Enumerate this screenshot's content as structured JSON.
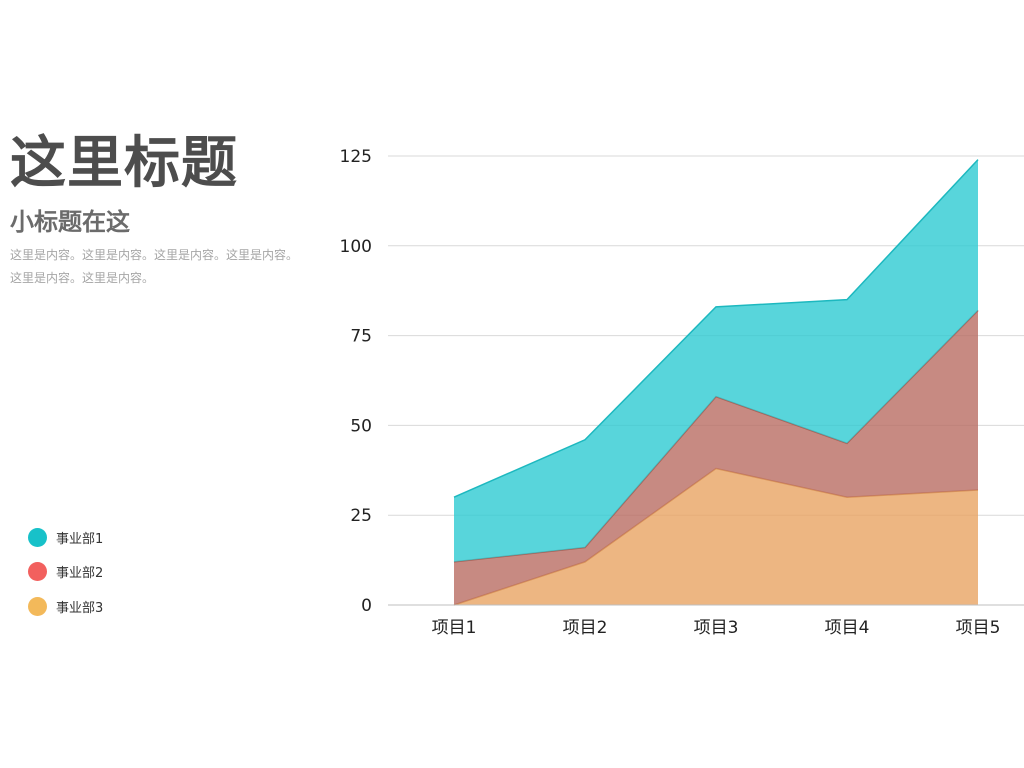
{
  "heading": {
    "title": "这里标题",
    "subtitle": "小标题在这",
    "body": "这里是内容。这里是内容。这里是内容。这里是内容。这里是内容。这里是内容。"
  },
  "colors": {
    "series1": "#2ecbd2",
    "series2": "#b96d63",
    "series3": "#e8a463",
    "legend1": "#17c1c9",
    "legend2": "#f2605e",
    "legend3": "#f3b95a",
    "grid": "#d9d9d9",
    "axis": "#bfbfbf"
  },
  "legend": [
    {
      "label": "事业部1",
      "color_key": "legend1"
    },
    {
      "label": "事业部2",
      "color_key": "legend2"
    },
    {
      "label": "事业部3",
      "color_key": "legend3"
    }
  ],
  "chart_data": {
    "type": "area",
    "stacked": true,
    "categories": [
      "项目1",
      "项目2",
      "项目3",
      "项目4",
      "项目5"
    ],
    "series": [
      {
        "name": "事业部3",
        "values": [
          0,
          12,
          38,
          30,
          32
        ]
      },
      {
        "name": "事业部2",
        "values": [
          12,
          4,
          20,
          15,
          50
        ]
      },
      {
        "name": "事业部1",
        "values": [
          18,
          30,
          25,
          40,
          42
        ]
      }
    ],
    "yticks": [
      0,
      25,
      50,
      75,
      100,
      125
    ],
    "ylim": [
      0,
      125
    ],
    "grid": true,
    "legend_position": "left"
  }
}
